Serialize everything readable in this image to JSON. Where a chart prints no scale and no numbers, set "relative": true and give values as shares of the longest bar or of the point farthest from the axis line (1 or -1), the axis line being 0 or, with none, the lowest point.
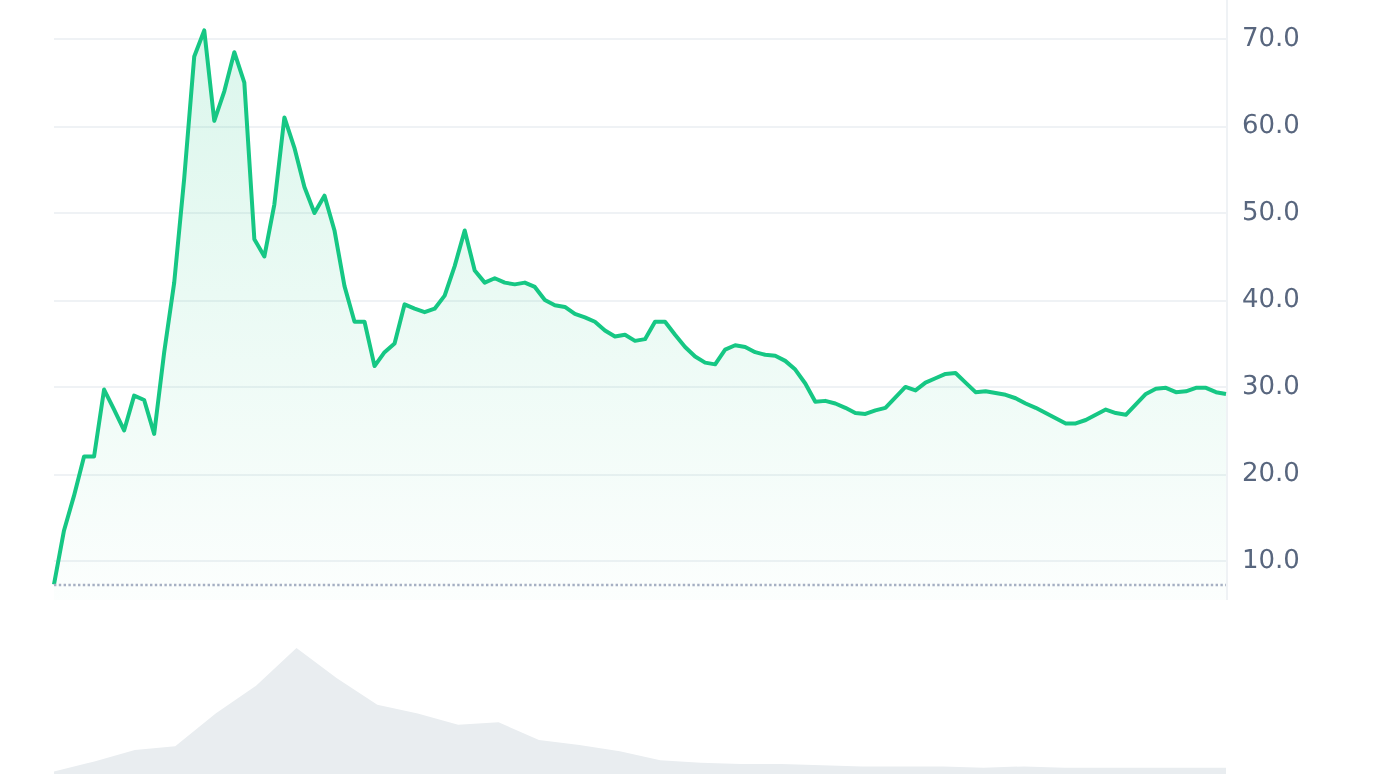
{
  "chart_data": [
    {
      "type": "area",
      "categories": [
        null,
        null,
        null,
        null,
        null,
        null,
        null,
        null,
        null,
        null,
        null,
        null,
        null,
        null,
        null,
        null,
        null,
        null,
        null,
        null,
        null,
        null,
        null,
        null,
        null,
        null,
        null,
        null,
        null,
        null,
        null,
        null,
        null,
        null,
        null,
        null,
        null,
        null,
        null,
        null,
        null,
        null,
        null,
        null,
        null,
        null,
        null,
        null,
        null,
        null,
        null,
        null,
        null,
        null,
        null,
        null,
        null,
        null,
        null,
        null,
        null,
        null,
        null,
        null,
        null,
        null,
        null,
        null,
        null,
        null,
        null,
        null,
        null,
        null,
        null,
        null,
        null,
        null,
        null,
        null,
        null,
        null,
        null,
        null,
        null,
        null,
        null,
        null,
        null,
        null,
        null,
        null,
        null,
        null,
        null,
        null,
        null,
        null,
        null,
        null,
        null,
        null,
        null,
        null,
        null,
        null,
        null,
        null,
        null,
        null,
        null,
        null,
        null,
        null,
        null,
        null,
        null,
        null
      ],
      "series": [
        {
          "color": "#16c784",
          "values": [
            7.3,
            13.5,
            17.5,
            22,
            22,
            29.7,
            27.4,
            25,
            29,
            28.5,
            24.6,
            34,
            42,
            54,
            68,
            71,
            60.6,
            64,
            68.5,
            65,
            47,
            45,
            51,
            61,
            57.5,
            53,
            50,
            52,
            48,
            41.6,
            37.5,
            37.5,
            32.4,
            34,
            35,
            39.5,
            39,
            38.6,
            39,
            40.5,
            43.9,
            48,
            43.4,
            42,
            42.5,
            42,
            41.8,
            42,
            41.5,
            40,
            39.4,
            39.2,
            38.4,
            38,
            37.5,
            36.5,
            35.8,
            36,
            35.3,
            35.5,
            37.5,
            37.5,
            36,
            34.6,
            33.5,
            32.8,
            32.6,
            34.3,
            34.8,
            34.6,
            34,
            33.7,
            33.6,
            33,
            32,
            30.4,
            28.3,
            28.4,
            28.1,
            27.6,
            27,
            26.9,
            27.3,
            27.6,
            28.8,
            30,
            29.6,
            30.5,
            31,
            31.5,
            31.6,
            30.5,
            29.4,
            29.5,
            29.3,
            29.1,
            28.7,
            28.1,
            27.6,
            27,
            26.4,
            25.8,
            25.8,
            26.2,
            26.8,
            27.4,
            27,
            26.8,
            28,
            29.2,
            29.8,
            29.9,
            29.4,
            29.5,
            29.9,
            29.9,
            29.4,
            29.2
          ]
        }
      ],
      "ylim": [
        5.5,
        74.5
      ],
      "yticks": [
        {
          "value": 10,
          "label": "10.0"
        },
        {
          "value": 20,
          "label": "20.0"
        },
        {
          "value": 30,
          "label": "30.0"
        },
        {
          "value": 40,
          "label": "40.0"
        },
        {
          "value": 50,
          "label": "50.0"
        },
        {
          "value": 60,
          "label": "60.0"
        },
        {
          "value": 70,
          "label": "70.0"
        }
      ],
      "ref_lines": [
        {
          "axis": "y",
          "value": 7.3,
          "color": "#a6b0c3",
          "line_style": "dotted"
        }
      ],
      "grid": "y",
      "tick_labels": "y",
      "marker": "none",
      "line_style": "solid"
    },
    {
      "type": "area",
      "relative": true,
      "categories": [
        null,
        null,
        null,
        null,
        null,
        null,
        null,
        null,
        null,
        null,
        null,
        null,
        null,
        null,
        null,
        null,
        null,
        null,
        null,
        null,
        null,
        null,
        null,
        null,
        null,
        null,
        null,
        null,
        null,
        null
      ],
      "series": [
        {
          "color": "#e9edf0",
          "values": [
            0.02,
            0.1,
            0.19,
            0.22,
            0.48,
            0.7,
            1,
            0.76,
            0.55,
            0.48,
            0.39,
            0.41,
            0.27,
            0.23,
            0.18,
            0.11,
            0.09,
            0.08,
            0.08,
            0.07,
            0.06,
            0.06,
            0.06,
            0.05,
            0.06,
            0.05,
            0.05,
            0.05,
            0.05,
            0.05
          ]
        }
      ],
      "grid": false,
      "tick_labels": false,
      "marker": "none"
    }
  ]
}
